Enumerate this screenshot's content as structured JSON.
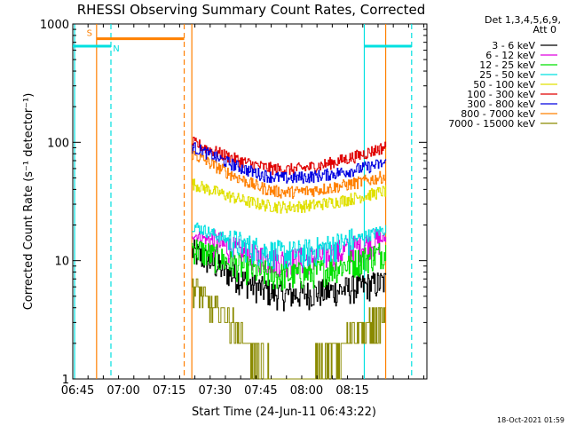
{
  "chart_data": {
    "type": "line",
    "title": "RHESSI Observing Summary Count Rates, Corrected",
    "xlabel": "Start Time (24-Jun-11 06:43:22)",
    "ylabel": "Corrected Count Rate (s⁻¹ detector⁻¹)",
    "x_ticks": [
      "06:45",
      "07:00",
      "07:15",
      "07:30",
      "07:45",
      "08:00",
      "08:15"
    ],
    "y_ticks": [
      "1",
      "10",
      "100",
      "1000"
    ],
    "y_scale": "log",
    "ylim": [
      1,
      1000
    ],
    "x_range_min": [
      0,
      116
    ],
    "detector_info": [
      "Det 1,3,4,5,6,9,",
      "Att 0"
    ],
    "timestamp": "18-Oct-2021 01:59",
    "data_window_min": [
      39.0,
      102.5
    ],
    "series": [
      {
        "name": "3 - 6 keV",
        "color": "#000000",
        "start": 12,
        "min": 5.2,
        "end": 6.6
      },
      {
        "name": "6 - 12 keV",
        "color": "#e000e0",
        "start": 17,
        "min": 10.0,
        "end": 15.5
      },
      {
        "name": "12 - 25 keV",
        "color": "#00e000",
        "start": 13,
        "min": 7.5,
        "end": 12.0
      },
      {
        "name": "25 - 50 keV",
        "color": "#00e0e0",
        "start": 20,
        "min": 11.5,
        "end": 18.5
      },
      {
        "name": "50 - 100 keV",
        "color": "#e0e000",
        "start": 45,
        "min": 28.5,
        "end": 39
      },
      {
        "name": "100 - 300 keV",
        "color": "#e00000",
        "start": 100,
        "min": 59,
        "end": 92
      },
      {
        "name": "300 - 800 keV",
        "color": "#0000e0",
        "start": 92,
        "min": 50,
        "end": 67
      },
      {
        "name": "800 - 7000 keV",
        "color": "#ff8000",
        "start": 80,
        "min": 38,
        "end": 52
      },
      {
        "name": "7000 - 15000 keV",
        "color": "#8a8a00",
        "start": 6,
        "min": 1.0,
        "end": 3.5
      }
    ],
    "flag_bars": [
      {
        "label": "S",
        "color": "#ff8000",
        "level": 750,
        "x_start_min": 7.8,
        "x_end_min": 36.5
      },
      {
        "label": "N",
        "color": "#00e0e0",
        "level": 650,
        "x_start_min": 0,
        "x_end_min": 12.5
      },
      {
        "label": "",
        "color": "#00e0e0",
        "level": 650,
        "x_start_min": 95.5,
        "x_end_min": 111.0
      }
    ],
    "vertical_markers": [
      {
        "color": "#00e0e0",
        "style": "solid",
        "min": 0.6
      },
      {
        "color": "#ff8000",
        "style": "solid",
        "min": 7.8
      },
      {
        "color": "#00e0e0",
        "style": "dashed",
        "min": 12.5
      },
      {
        "color": "#ff8000",
        "style": "dashed",
        "min": 36.5
      },
      {
        "color": "#ff8000",
        "style": "solid",
        "min": 39.0
      },
      {
        "color": "#00e0e0",
        "style": "solid",
        "min": 95.5
      },
      {
        "color": "#ff8000",
        "style": "solid",
        "min": 102.5
      },
      {
        "color": "#00e0e0",
        "style": "dashed",
        "min": 111.0
      }
    ]
  }
}
